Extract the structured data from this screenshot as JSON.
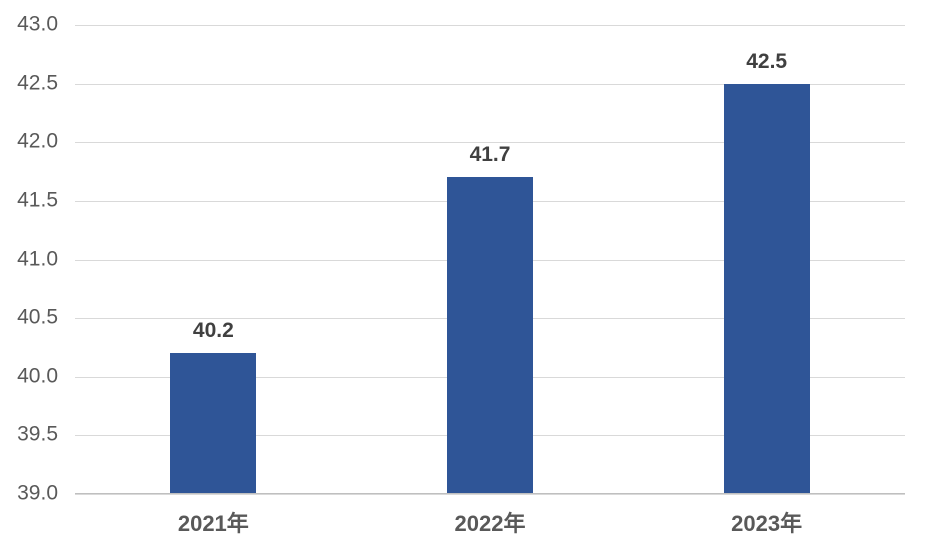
{
  "chart_data": {
    "type": "bar",
    "title": "",
    "xlabel": "",
    "ylabel": "",
    "categories": [
      "2021年",
      "2022年",
      "2023年"
    ],
    "values": [
      40.2,
      41.7,
      42.5
    ],
    "data_labels": [
      "40.2",
      "41.7",
      "42.5"
    ],
    "ylim": [
      39.0,
      43.0
    ],
    "ytick_step": 0.5,
    "ytick_labels": [
      "39.0",
      "39.5",
      "40.0",
      "40.5",
      "41.0",
      "41.5",
      "42.0",
      "42.5",
      "43.0"
    ],
    "grid": true,
    "legend": false,
    "colors": {
      "bar": "#2F5597",
      "gridline": "#D9D9D9",
      "axis_line": "#BFBFBF",
      "ytick_text": "#595959",
      "xtick_text": "#595959",
      "data_label_text": "#404040",
      "background": "#FFFFFF"
    }
  }
}
